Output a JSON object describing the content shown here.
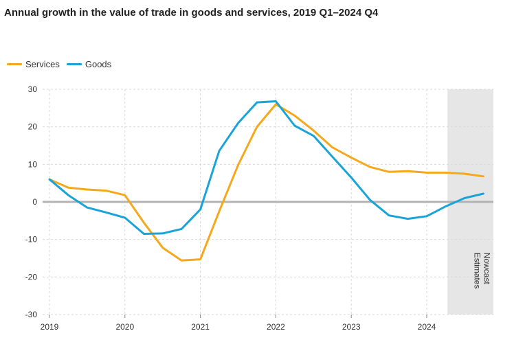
{
  "title": "Annual growth in the value of trade in goods and services, 2019 Q1–2024 Q4",
  "legend": {
    "services_label": "Services",
    "goods_label": "Goods"
  },
  "colors": {
    "services": "#f5a81c",
    "goods": "#1aa3d9",
    "zero_line": "#b3b3b3",
    "grid": "#d9d9d9",
    "shade": "#e6e6e6"
  },
  "chart_data": {
    "type": "line",
    "title": "Annual growth in the value of trade in goods and services, 2019 Q1–2024 Q4",
    "xlabel": "",
    "ylabel": "",
    "ylim": [
      -30,
      30
    ],
    "yticks": [
      30,
      20,
      10,
      0,
      -10,
      -20,
      -30
    ],
    "ytick_labels": [
      "30",
      "20",
      "10",
      "0",
      "-10",
      "-20",
      "-30"
    ],
    "xticks": [
      "2019",
      "2020",
      "2021",
      "2022",
      "2023",
      "2024"
    ],
    "grid": true,
    "legend_position": "top-left",
    "x": [
      "2019 Q1",
      "2019 Q2",
      "2019 Q3",
      "2019 Q4",
      "2020 Q1",
      "2020 Q2",
      "2020 Q3",
      "2020 Q4",
      "2021 Q1",
      "2021 Q2",
      "2021 Q3",
      "2021 Q4",
      "2022 Q1",
      "2022 Q2",
      "2022 Q3",
      "2022 Q4",
      "2023 Q1",
      "2023 Q2",
      "2023 Q3",
      "2023 Q4",
      "2024 Q1",
      "2024 Q2",
      "2024 Q3",
      "2024 Q4"
    ],
    "series": [
      {
        "name": "Services",
        "values": [
          6,
          3.8,
          3.3,
          3.0,
          1.8,
          -5.5,
          -12.2,
          -15.6,
          -15.3,
          -2.5,
          9.8,
          20.0,
          26.0,
          23.0,
          19.0,
          14.5,
          11.8,
          9.3,
          8.0,
          8.2,
          7.8,
          7.8,
          7.5,
          6.8
        ]
      },
      {
        "name": "Goods",
        "values": [
          6,
          1.8,
          -1.5,
          -2.8,
          -4.2,
          -8.5,
          -8.4,
          -7.2,
          -2.0,
          13.6,
          21.0,
          26.5,
          26.8,
          20.3,
          17.6,
          12.0,
          6.5,
          0.5,
          -3.6,
          -4.5,
          -3.8,
          -1.2,
          1.0,
          2.2
        ]
      }
    ],
    "annotation": {
      "text_line1": "Nowcast",
      "text_line2": "Estimates",
      "shaded_from_quarter_index": 22,
      "shaded_to_quarter_index": 23
    }
  }
}
